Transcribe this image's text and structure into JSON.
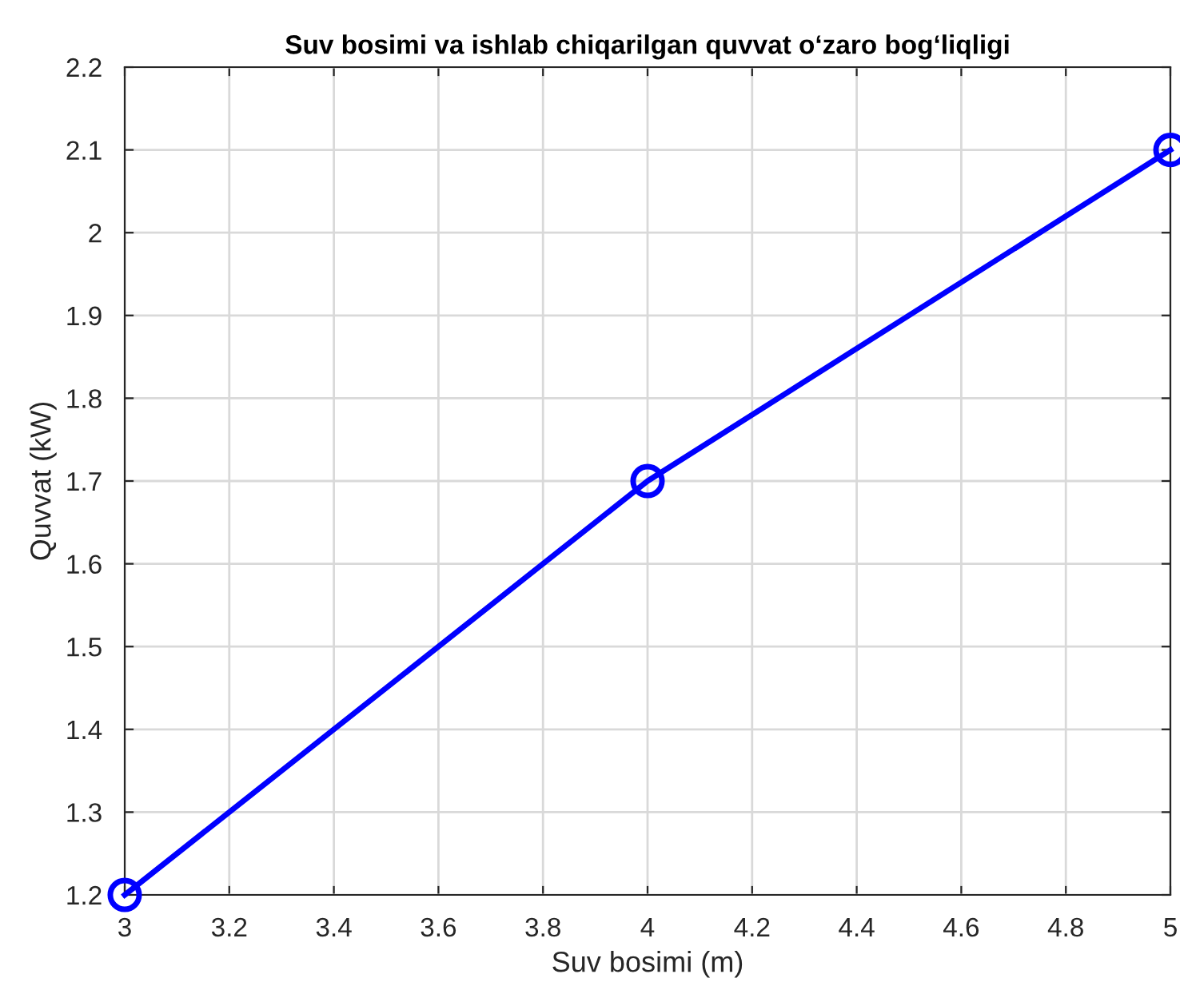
{
  "chart_data": {
    "type": "line",
    "title": "Suv bosimi va ishlab chiqarilgan quvvat o‘zaro bog‘liqligi",
    "xlabel": "Suv bosimi (m)",
    "ylabel": "Quvvat (kW)",
    "x": [
      3,
      4,
      5
    ],
    "series": [
      {
        "color": "#0000ff",
        "values": [
          1.2,
          1.7,
          2.1
        ]
      }
    ],
    "xlim": [
      3,
      5
    ],
    "xticks": [
      3,
      3.2,
      3.4,
      3.6,
      3.8,
      4,
      4.2,
      4.4,
      4.6,
      4.8,
      5
    ],
    "ylim": [
      1.2,
      2.2
    ],
    "yticks": [
      1.2,
      1.3,
      1.4,
      1.5,
      1.6,
      1.7,
      1.8,
      1.9,
      2,
      2.1,
      2.2
    ],
    "grid": true,
    "marker": "circle",
    "line_style": "solid",
    "legend": false
  }
}
